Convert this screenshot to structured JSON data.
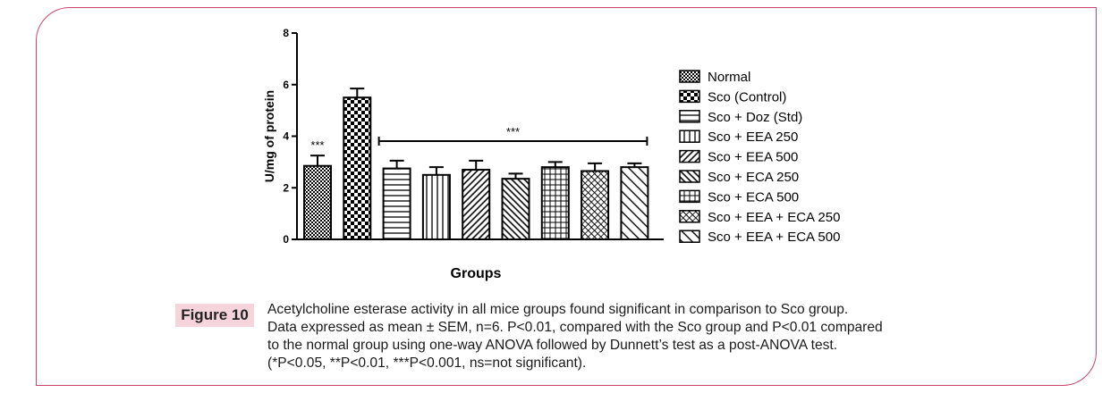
{
  "chart_data": {
    "type": "bar",
    "xlabel": "Groups",
    "ylabel": "U/mg of protein",
    "ylim": [
      0,
      8
    ],
    "yticks": [
      0,
      2,
      4,
      6,
      8
    ],
    "categories": [
      "Normal",
      "Sco (Control)",
      "Sco + Doz (Std)",
      "Sco + EEA 250",
      "Sco + EEA 500",
      "Sco + ECA 250",
      "Sco + ECA 500",
      "Sco + EEA + ECA 250",
      "Sco + EEA + ECA 500"
    ],
    "values": [
      2.85,
      5.5,
      2.75,
      2.5,
      2.7,
      2.35,
      2.8,
      2.65,
      2.8
    ],
    "errors": [
      0.4,
      0.35,
      0.3,
      0.3,
      0.35,
      0.2,
      0.2,
      0.3,
      0.15
    ],
    "patterns": [
      "fine-checker",
      "checker",
      "hlines",
      "vlines",
      "diag-dense",
      "diag-back-dense",
      "grid",
      "crosshatch",
      "diag-back"
    ],
    "annotations": {
      "normal_sig": "***",
      "group_sig": "***"
    },
    "legend_position": "right"
  },
  "figure": {
    "label": "Figure 10",
    "caption_lines": [
      "Acetylcholine esterase activity in all mice groups found significant in comparison to Sco group.",
      "Data expressed as mean ± SEM, n=6. P<0.01, compared with the Sco group and P<0.01 compared",
      "to the normal group using one-way ANOVA followed by Dunnett’s test as a post-ANOVA test.",
      "(*P<0.05, **P<0.01, ***P<0.001, ns=not significant)."
    ]
  },
  "colors": {
    "frame": "#c9466a",
    "label_bg": "#f6d4dc",
    "ink": "#000000"
  }
}
